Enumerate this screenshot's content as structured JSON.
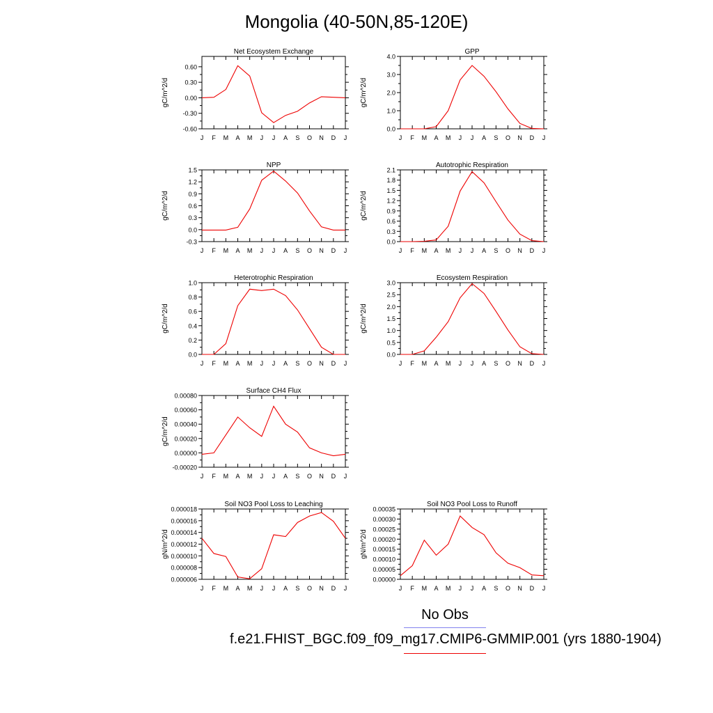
{
  "page": {
    "title": "Mongolia (40-50N,85-120E)",
    "legend": {
      "obs_label": "No Obs",
      "obs_color": "#8080ee",
      "case_label": "f.e21.FHIST_BGC.f09_f09_mg17.CMIP6-GMMIP.001 (yrs 1880-1904)",
      "case_color": "#ee0000"
    }
  },
  "chart_data": [
    {
      "type": "line",
      "title": "Net Ecosystem Exchange",
      "ylabel": "gC/m^2/d",
      "x": [
        "J",
        "F",
        "M",
        "A",
        "M",
        "J",
        "J",
        "A",
        "S",
        "O",
        "N",
        "D",
        "J"
      ],
      "ylim": [
        -0.6,
        0.8
      ],
      "yticks": [
        "-0.60",
        "-0.30",
        "0.00",
        "0.30",
        "0.60"
      ],
      "yticks_values": [
        -0.6,
        -0.3,
        0.0,
        0.3,
        0.6
      ],
      "series": [
        {
          "color": "#ee0000",
          "values": [
            0.0,
            0.01,
            0.16,
            0.62,
            0.42,
            -0.29,
            -0.48,
            -0.34,
            -0.26,
            -0.1,
            0.02,
            0.01,
            0.0
          ]
        }
      ]
    },
    {
      "type": "line",
      "title": "GPP",
      "ylabel": "gC/m^2/d",
      "x": [
        "J",
        "F",
        "M",
        "A",
        "M",
        "J",
        "J",
        "A",
        "S",
        "O",
        "N",
        "D",
        "J"
      ],
      "ylim": [
        0,
        4
      ],
      "yticks": [
        "0.0",
        "1.0",
        "2.0",
        "3.0",
        "4.0"
      ],
      "yticks_values": [
        0,
        1,
        2,
        3,
        4
      ],
      "series": [
        {
          "color": "#ee0000",
          "values": [
            0.0,
            0.0,
            0.0,
            0.12,
            1.0,
            2.7,
            3.5,
            2.9,
            2.05,
            1.1,
            0.3,
            0.02,
            0.0
          ]
        }
      ]
    },
    {
      "type": "line",
      "title": "NPP",
      "ylabel": "gC/m^2/d",
      "x": [
        "J",
        "F",
        "M",
        "A",
        "M",
        "J",
        "J",
        "A",
        "S",
        "O",
        "N",
        "D",
        "J"
      ],
      "ylim": [
        -0.3,
        1.5
      ],
      "yticks": [
        "-0.3",
        "0.0",
        "0.3",
        "0.6",
        "0.9",
        "1.2",
        "1.5"
      ],
      "yticks_values": [
        -0.3,
        0.0,
        0.3,
        0.6,
        0.9,
        1.2,
        1.5
      ],
      "series": [
        {
          "color": "#ee0000",
          "values": [
            -0.01,
            -0.01,
            -0.01,
            0.06,
            0.52,
            1.24,
            1.47,
            1.22,
            0.92,
            0.47,
            0.07,
            -0.01,
            -0.01
          ]
        }
      ]
    },
    {
      "type": "line",
      "title": "Autotrophic Respiration",
      "ylabel": "gC/m^2/d",
      "x": [
        "J",
        "F",
        "M",
        "A",
        "M",
        "J",
        "J",
        "A",
        "S",
        "O",
        "N",
        "D",
        "J"
      ],
      "ylim": [
        0,
        2.1
      ],
      "yticks": [
        "0.0",
        "0.3",
        "0.6",
        "0.9",
        "1.2",
        "1.5",
        "1.8",
        "2.1"
      ],
      "yticks_values": [
        0,
        0.3,
        0.6,
        0.9,
        1.2,
        1.5,
        1.8,
        2.1
      ],
      "series": [
        {
          "color": "#ee0000",
          "values": [
            0.0,
            0.0,
            0.01,
            0.05,
            0.45,
            1.48,
            2.05,
            1.72,
            1.17,
            0.63,
            0.22,
            0.03,
            0.0
          ]
        }
      ]
    },
    {
      "type": "line",
      "title": "Heterotrophic Respiration",
      "ylabel": "gC/m^2/d",
      "x": [
        "J",
        "F",
        "M",
        "A",
        "M",
        "J",
        "J",
        "A",
        "S",
        "O",
        "N",
        "D",
        "J"
      ],
      "ylim": [
        0,
        1.0
      ],
      "yticks": [
        "0.0",
        "0.2",
        "0.4",
        "0.6",
        "0.8",
        "1.0"
      ],
      "yticks_values": [
        0,
        0.2,
        0.4,
        0.6,
        0.8,
        1.0
      ],
      "series": [
        {
          "color": "#ee0000",
          "values": [
            0.0,
            0.0,
            0.15,
            0.68,
            0.91,
            0.89,
            0.91,
            0.82,
            0.62,
            0.36,
            0.1,
            0.0,
            0.0
          ]
        }
      ]
    },
    {
      "type": "line",
      "title": "Ecosystem Respiration",
      "ylabel": "gC/m^2/d",
      "x": [
        "J",
        "F",
        "M",
        "A",
        "M",
        "J",
        "J",
        "A",
        "S",
        "O",
        "N",
        "D",
        "J"
      ],
      "ylim": [
        0,
        3.0
      ],
      "yticks": [
        "0.0",
        "0.5",
        "1.0",
        "1.5",
        "2.0",
        "2.5",
        "3.0"
      ],
      "yticks_values": [
        0,
        0.5,
        1.0,
        1.5,
        2.0,
        2.5,
        3.0
      ],
      "series": [
        {
          "color": "#ee0000",
          "values": [
            0.0,
            0.0,
            0.15,
            0.72,
            1.37,
            2.37,
            2.96,
            2.55,
            1.8,
            1.02,
            0.32,
            0.03,
            0.0
          ]
        }
      ]
    },
    {
      "type": "line",
      "title": "Surface CH4 Flux",
      "ylabel": "gC/m^2/d",
      "x": [
        "J",
        "F",
        "M",
        "A",
        "M",
        "J",
        "J",
        "A",
        "S",
        "O",
        "N",
        "D",
        "J"
      ],
      "ylim": [
        -0.0002,
        0.0008
      ],
      "yticks": [
        "-0.00020",
        "0.00000",
        "0.00020",
        "0.00040",
        "0.00060",
        "0.00080"
      ],
      "yticks_values": [
        -0.0002,
        0.0,
        0.0002,
        0.0004,
        0.0006,
        0.0008
      ],
      "series": [
        {
          "color": "#ee0000",
          "values": [
            -2e-05,
            0.0,
            0.00025,
            0.0005,
            0.00035,
            0.00023,
            0.00065,
            0.0004,
            0.00029,
            7e-05,
            0.0,
            -4e-05,
            -2e-05
          ]
        }
      ]
    },
    {
      "type": "line",
      "title": "Soil NO3 Pool Loss to Leaching",
      "ylabel": "gN/m^2/d",
      "x": [
        "J",
        "F",
        "M",
        "A",
        "M",
        "J",
        "J",
        "A",
        "S",
        "O",
        "N",
        "D",
        "J"
      ],
      "ylim": [
        6e-06,
        1.8e-05
      ],
      "yticks": [
        "0.000006",
        "0.000008",
        "0.000010",
        "0.000012",
        "0.000014",
        "0.000016",
        "0.000018"
      ],
      "yticks_values": [
        6e-06,
        8e-06,
        1e-05,
        1.2e-05,
        1.4e-05,
        1.6e-05,
        1.8e-05
      ],
      "series": [
        {
          "color": "#ee0000",
          "values": [
            1.3e-05,
            1.04e-05,
            9.9e-06,
            6.4e-06,
            6.1e-06,
            7.8e-06,
            1.36e-05,
            1.33e-05,
            1.57e-05,
            1.68e-05,
            1.74e-05,
            1.59e-05,
            1.3e-05
          ]
        }
      ]
    },
    {
      "type": "line",
      "title": "Soil NO3 Pool Loss to Runoff",
      "ylabel": "gN/m^2/d",
      "x": [
        "J",
        "F",
        "M",
        "A",
        "M",
        "J",
        "J",
        "A",
        "S",
        "O",
        "N",
        "D",
        "J"
      ],
      "ylim": [
        0,
        0.00035
      ],
      "yticks": [
        "0.00000",
        "0.00005",
        "0.00010",
        "0.00015",
        "0.00020",
        "0.00025",
        "0.00030",
        "0.00035"
      ],
      "yticks_values": [
        0,
        5e-05,
        0.0001,
        0.00015,
        0.0002,
        0.00025,
        0.0003,
        0.00035
      ],
      "series": [
        {
          "color": "#ee0000",
          "values": [
            1.8e-05,
            6.8e-05,
            0.000195,
            0.00012,
            0.000175,
            0.000315,
            0.000258,
            0.000222,
            0.000132,
            8e-05,
            5.8e-05,
            2.2e-05,
            1.8e-05
          ]
        }
      ]
    }
  ]
}
